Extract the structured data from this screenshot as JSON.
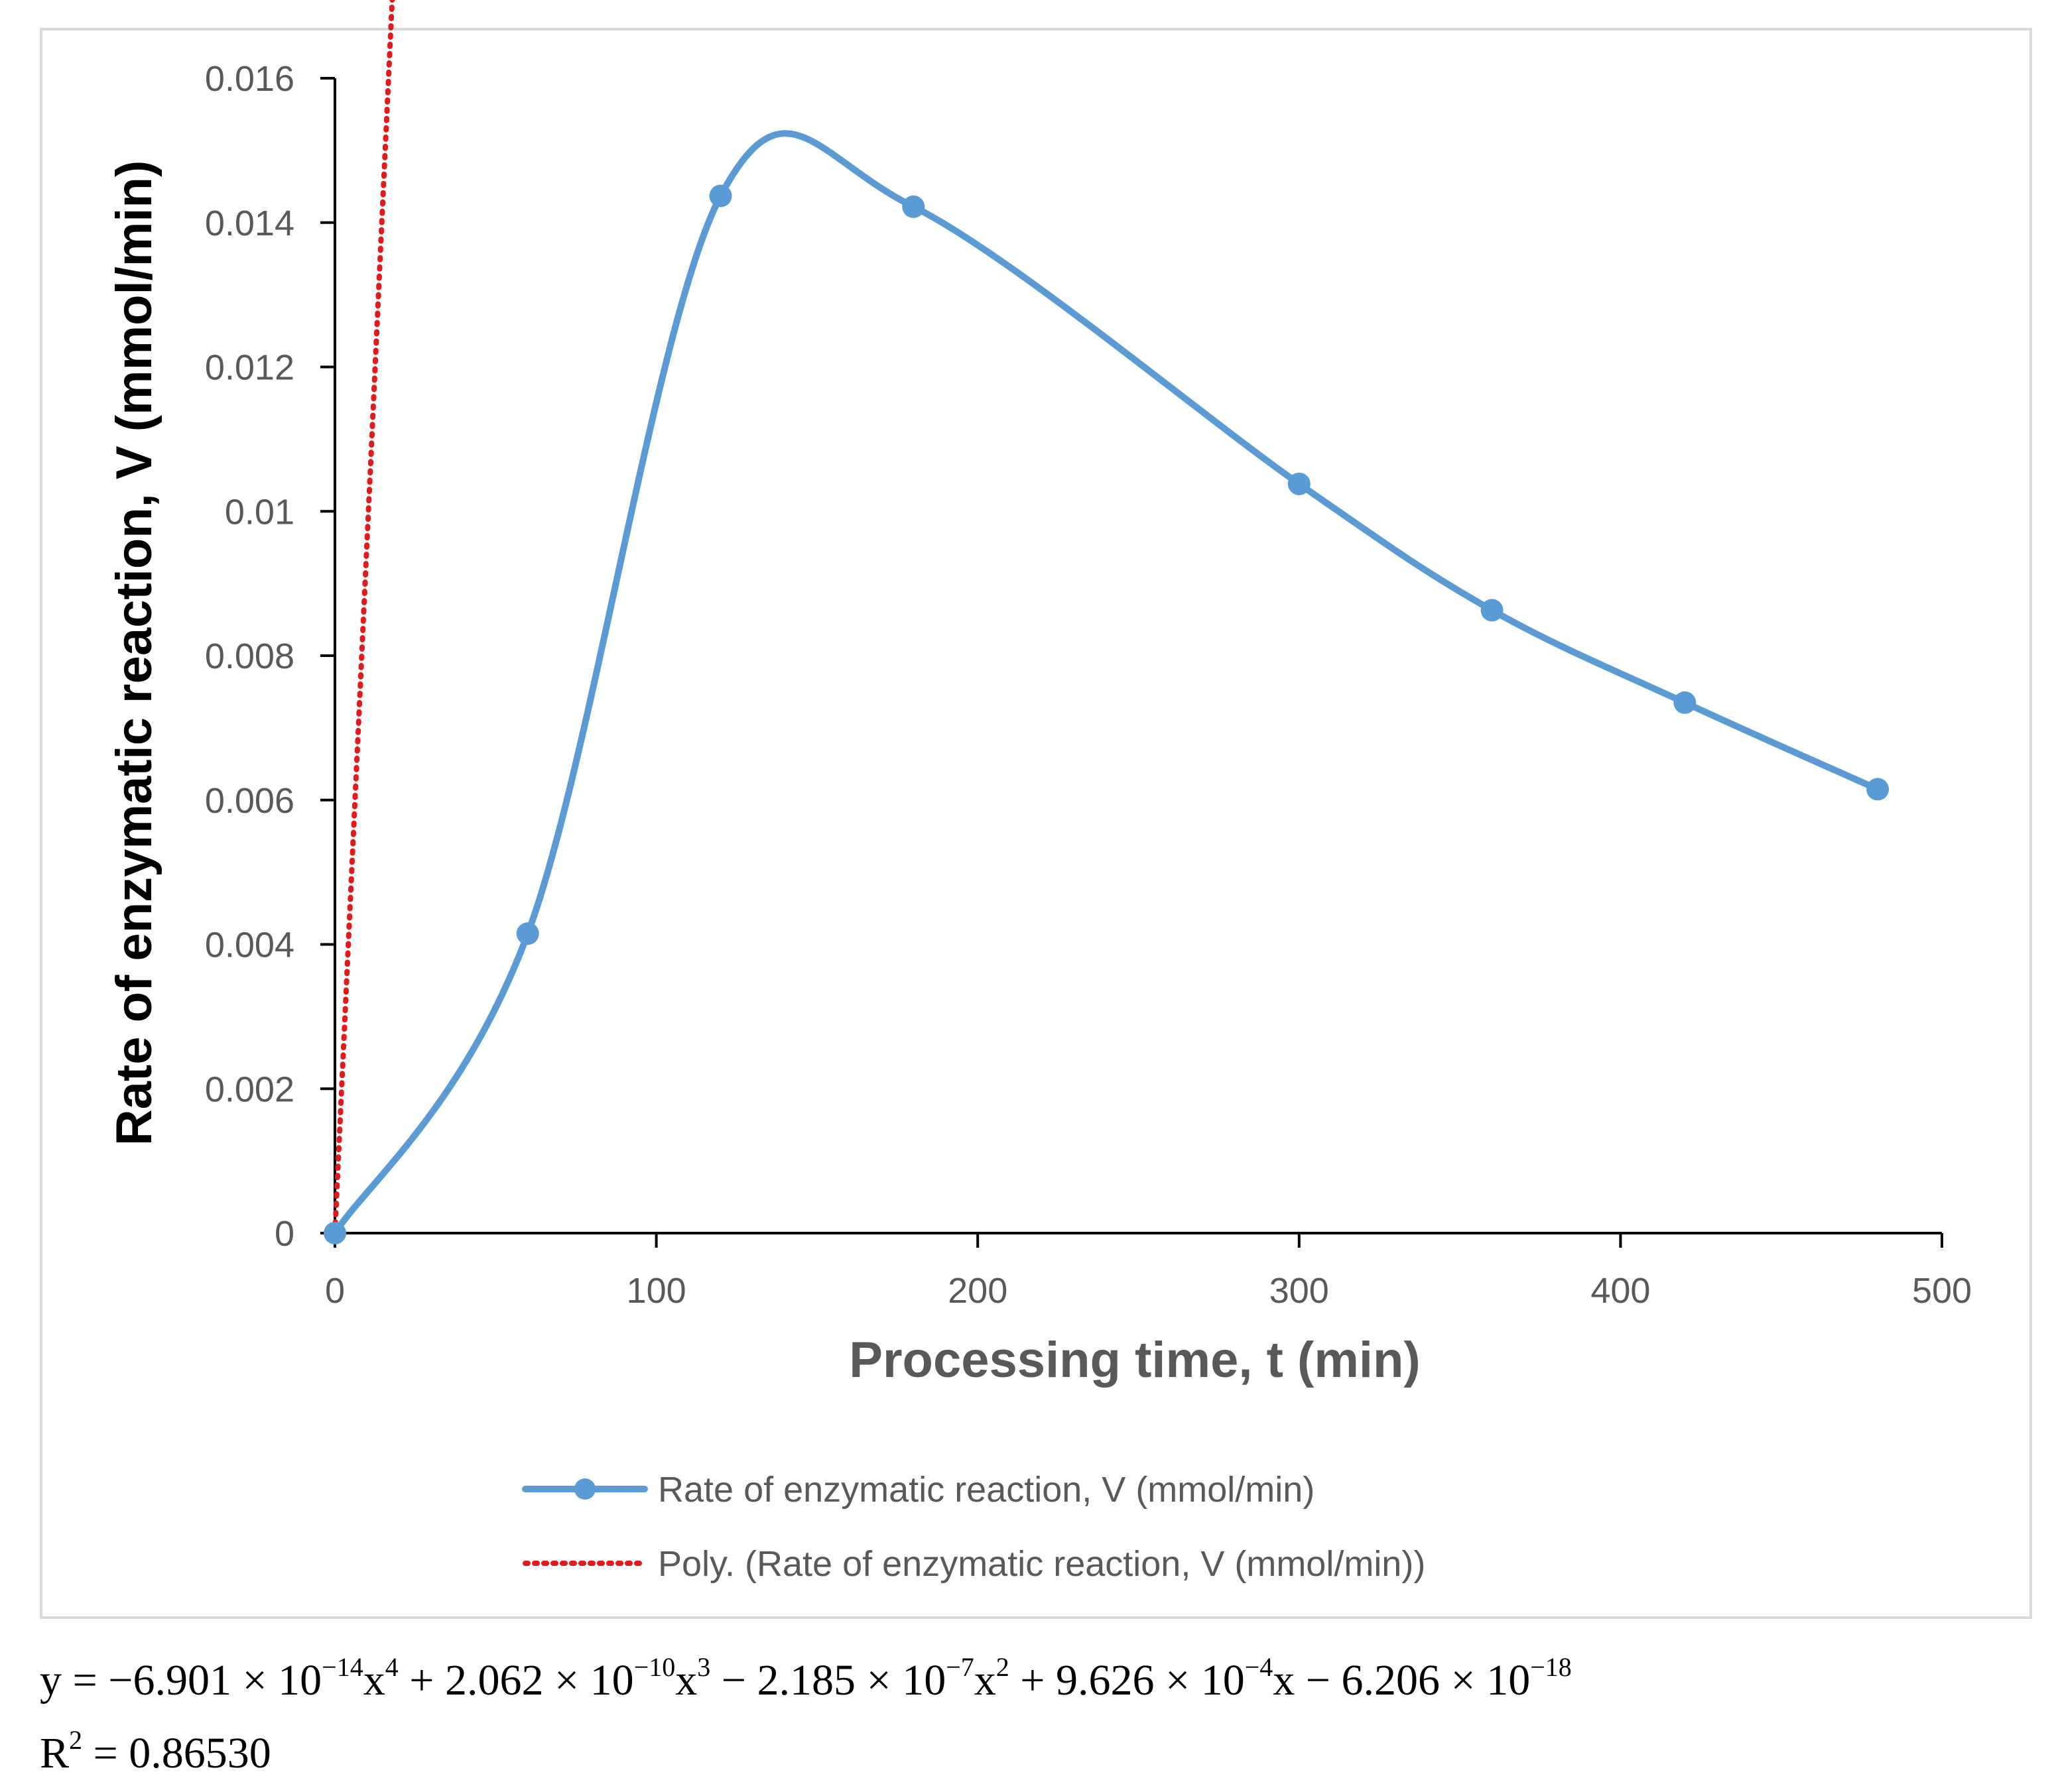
{
  "chart_data": {
    "type": "line",
    "title": "",
    "xlabel": "Processing time, t (min)",
    "ylabel": "Rate of enzymatic reaction, V (mmol/min)",
    "xlim": [
      0,
      500
    ],
    "ylim": [
      0,
      0.016
    ],
    "x_ticks": [
      "0",
      "100",
      "200",
      "300",
      "400",
      "500"
    ],
    "y_ticks": [
      "0",
      "0.002",
      "0.004",
      "0.006",
      "0.008",
      "0.01",
      "0.012",
      "0.014",
      "0.016"
    ],
    "grid": false,
    "legend_position": "bottom",
    "series": [
      {
        "name": "Rate of enzymatic reaction, V (mmol/min)",
        "color": "#5b9bd5",
        "style": "smooth-line-with-markers",
        "x": [
          0,
          60,
          120,
          180,
          300,
          360,
          420,
          480
        ],
        "y": [
          0,
          0.00415,
          0.01437,
          0.01422,
          0.01038,
          0.00863,
          0.00735,
          0.00615
        ]
      },
      {
        "name": "Poly. (Rate of enzymatic reaction, V (mmol/min))",
        "color": "#e31a1c",
        "style": "dotted-trendline",
        "coefficients": [
          -6.206e-18,
          0.0009626,
          -2.185e-07,
          2.062e-10,
          -6.901e-14
        ]
      }
    ]
  },
  "equation": {
    "prefix": "y = −6.901 × 10",
    "exp1": "−14",
    "t1": "x",
    "exp2": "4",
    "t2": " + 2.062 × 10",
    "exp3": "−10",
    "t3": "x",
    "exp4": "3",
    "t4": " − 2.185 × 10",
    "exp5": "−7",
    "t5": "x",
    "exp6": "2",
    "t6": " + 9.626 × 10",
    "exp7": "−4",
    "t7": "x − 6.206 × 10",
    "exp8": "−18"
  },
  "r_squared": {
    "label": "R",
    "exp": "2",
    "value": " = 0.86530"
  }
}
